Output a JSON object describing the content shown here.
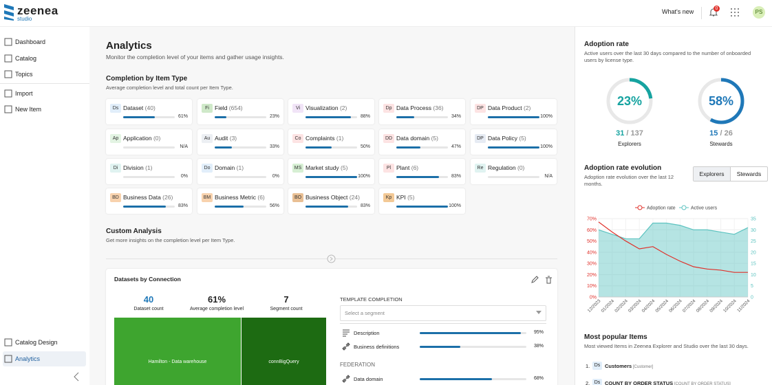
{
  "header": {
    "logo": "zeenea",
    "logo_sub": "studio",
    "whats_new": "What's new",
    "notification_count": "0",
    "avatar": "PS"
  },
  "sidebar": {
    "nav": [
      "Dashboard",
      "Catalog",
      "Topics",
      "Import",
      "New Item"
    ],
    "bottom": [
      "Catalog Design",
      "Analytics"
    ]
  },
  "main": {
    "title": "Analytics",
    "subtitle": "Monitor the completion level of your items and gather usage insights.",
    "completion": {
      "title": "Completion by Item Type",
      "subtitle": "Average completion level and total count per Item Type.",
      "items": [
        {
          "code": "Ds",
          "name": "Dataset",
          "count": "(40)",
          "pct": 61,
          "pct_label": "61%",
          "color": "#e1eefa"
        },
        {
          "code": "Fi",
          "name": "Field",
          "count": "(654)",
          "pct": 23,
          "pct_label": "23%",
          "color": "#cfe9c9"
        },
        {
          "code": "Vi",
          "name": "Visualization",
          "count": "(2)",
          "pct": 88,
          "pct_label": "88%",
          "color": "#f1e4f7"
        },
        {
          "code": "Dp",
          "name": "Data Process",
          "count": "(36)",
          "pct": 34,
          "pct_label": "34%",
          "color": "#fde3e3"
        },
        {
          "code": "DP",
          "name": "Data Product",
          "count": "(2)",
          "pct": 100,
          "pct_label": "100%",
          "color": "#fde3e3"
        },
        {
          "code": "Ap",
          "name": "Application",
          "count": "(0)",
          "pct": null,
          "pct_label": "N/A",
          "color": "#e3f4e3"
        },
        {
          "code": "Au",
          "name": "Audit",
          "count": "(3)",
          "pct": 33,
          "pct_label": "33%",
          "color": "#eceff3"
        },
        {
          "code": "Co",
          "name": "Complaints",
          "count": "(1)",
          "pct": 50,
          "pct_label": "50%",
          "color": "#fde3e3"
        },
        {
          "code": "DD",
          "name": "Data domain",
          "count": "(5)",
          "pct": 47,
          "pct_label": "47%",
          "color": "#fde3e3"
        },
        {
          "code": "DP",
          "name": "Data Policy",
          "count": "(5)",
          "pct": 100,
          "pct_label": "100%",
          "color": "#e6ebf3"
        },
        {
          "code": "Di",
          "name": "Division",
          "count": "(1)",
          "pct": 0,
          "pct_label": "0%",
          "color": "#e0f3f1"
        },
        {
          "code": "Do",
          "name": "Domain",
          "count": "(1)",
          "pct": 0,
          "pct_label": "0%",
          "color": "#e1eefa"
        },
        {
          "code": "MS",
          "name": "Market study",
          "count": "(5)",
          "pct": 100,
          "pct_label": "100%",
          "color": "#d6efd3"
        },
        {
          "code": "Pl",
          "name": "Plant",
          "count": "(6)",
          "pct": 83,
          "pct_label": "83%",
          "color": "#fde3e3"
        },
        {
          "code": "Re",
          "name": "Regulation",
          "count": "(0)",
          "pct": null,
          "pct_label": "N/A",
          "color": "#e0f3f1"
        },
        {
          "code": "BD",
          "name": "Business Data",
          "count": "(26)",
          "pct": 83,
          "pct_label": "83%",
          "color": "#f8d2ad"
        },
        {
          "code": "BM",
          "name": "Business Metric",
          "count": "(6)",
          "pct": 56,
          "pct_label": "56%",
          "color": "#f8d2ad"
        },
        {
          "code": "BO",
          "name": "Business Object",
          "count": "(24)",
          "pct": 83,
          "pct_label": "83%",
          "color": "#e9bf94"
        },
        {
          "code": "Kp",
          "name": "KPI",
          "count": "(5)",
          "pct": 100,
          "pct_label": "100%",
          "color": "#f3c996"
        }
      ]
    },
    "custom": {
      "title": "Custom Analysis",
      "subtitle": "Get more insights on the completion level per Item Type."
    },
    "card": {
      "title": "Datasets by Connection",
      "stats": [
        {
          "value": "40",
          "label": "Dataset count"
        },
        {
          "value": "61%",
          "label": "Average completion level"
        },
        {
          "value": "7",
          "label": "Segment count"
        }
      ],
      "treemap": [
        {
          "name": "Hamilton - Data warehouse",
          "color": "#3ea52f"
        },
        {
          "name": "connBigQuery",
          "color": "#1d6b12"
        }
      ],
      "template_title": "TEMPLATE COMPLETION",
      "select_placeholder": "Select a segment",
      "rows": [
        {
          "name": "Description",
          "pct": 95,
          "pct_label": "95%"
        },
        {
          "name": "Business definitions",
          "pct": 38,
          "pct_label": "38%"
        }
      ],
      "federation_title": "FEDERATION",
      "federation_rows": [
        {
          "name": "Data domain",
          "pct": 68,
          "pct_label": "68%"
        }
      ]
    }
  },
  "adoption": {
    "title": "Adoption rate",
    "subtitle": "Active users over the last 30 days compared to the number of onboarded users by license type.",
    "donuts": [
      {
        "pct": 23,
        "pct_label": "23%",
        "active": "31",
        "total": "/ 137",
        "label": "Explorers",
        "color": "#16a3a0"
      },
      {
        "pct": 58,
        "pct_label": "58%",
        "active": "15",
        "total": "/ 26",
        "label": "Stewards",
        "color": "#1f78b8"
      }
    ],
    "evolution_title": "Adoption rate evolution",
    "evolution_subtitle": "Adoption rate evolution over the last 12 months.",
    "tabs": [
      "Explorers",
      "Stewards"
    ]
  },
  "chart_data": {
    "type": "line",
    "categories": [
      "12/2023",
      "01/2024",
      "02/2024",
      "03/2024",
      "04/2024",
      "05/2024",
      "06/2024",
      "07/2024",
      "08/2024",
      "09/2024",
      "10/2024",
      "11/2024"
    ],
    "series": [
      {
        "name": "Adoption rate",
        "color": "#e0302a",
        "values": [
          67,
          58,
          50,
          43,
          45,
          38,
          32,
          27,
          25,
          24,
          22,
          22
        ]
      },
      {
        "name": "Active users",
        "color": "#5cc3c0",
        "axis": "y2",
        "values": [
          30,
          28,
          26,
          26,
          33,
          33,
          32,
          30,
          30,
          29,
          28,
          31
        ]
      }
    ],
    "ylim": [
      0,
      70
    ],
    "yticks": [
      {
        "value": 0,
        "label": "0%"
      },
      {
        "value": 10,
        "label": "10%"
      },
      {
        "value": 20,
        "label": "20%"
      },
      {
        "value": 30,
        "label": "30%"
      },
      {
        "value": 40,
        "label": "40%"
      },
      {
        "value": 50,
        "label": "50%"
      },
      {
        "value": 60,
        "label": "60%"
      },
      {
        "value": 70,
        "label": "70%"
      }
    ],
    "y2lim": [
      0,
      35
    ],
    "y2ticks": [
      0,
      5,
      10,
      15,
      20,
      25,
      30,
      35
    ],
    "grid": true
  },
  "popular": {
    "title": "Most popular Items",
    "subtitle": "Most viewed Items in Zeenea Explorer and Studio over the last 30 days.",
    "items": [
      {
        "rank": "1.",
        "code": "Ds",
        "name": "Customers",
        "tag": "[Customer]"
      },
      {
        "rank": "2.",
        "code": "Ds",
        "name": "COUNT BY ORDER STATUS",
        "tag": "[COUNT BY ORDER STATUS]"
      }
    ]
  }
}
